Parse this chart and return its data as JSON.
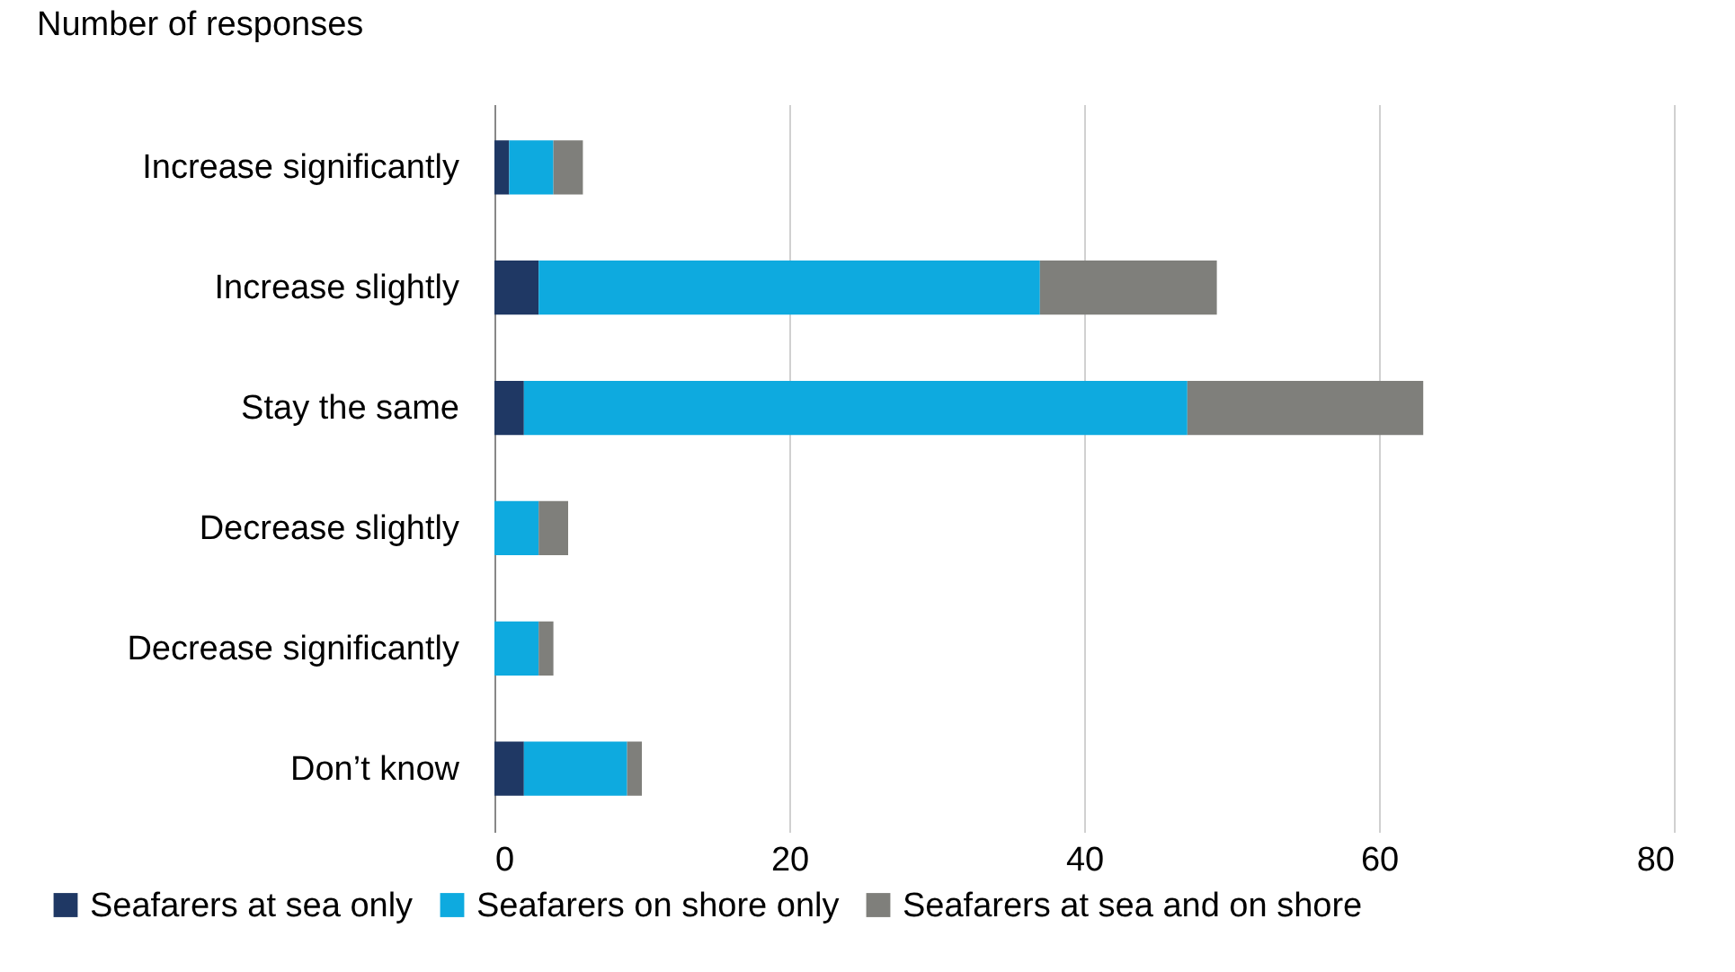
{
  "chart_data": {
    "type": "bar",
    "orientation": "horizontal",
    "stacked": true,
    "xlabel": "Number of responses",
    "categories": [
      "Increase significantly",
      "Increase slightly",
      "Stay the same",
      "Decrease slightly",
      "Decrease significantly",
      "Don’t know"
    ],
    "series": [
      {
        "name": "Seafarers at sea only",
        "color": "#1f3864",
        "values": [
          1,
          3,
          2,
          0,
          0,
          2
        ]
      },
      {
        "name": "Seafarers on shore only",
        "color": "#0eaadf",
        "values": [
          3,
          34,
          45,
          3,
          3,
          7
        ]
      },
      {
        "name": "Seafarers at sea and on shore",
        "color": "#7f7f7b",
        "values": [
          2,
          12,
          16,
          2,
          1,
          1
        ]
      }
    ],
    "xlim": [
      0,
      80
    ],
    "xticks": [
      0,
      20,
      40,
      60,
      80
    ],
    "grid": "x",
    "legend": "bottom"
  }
}
